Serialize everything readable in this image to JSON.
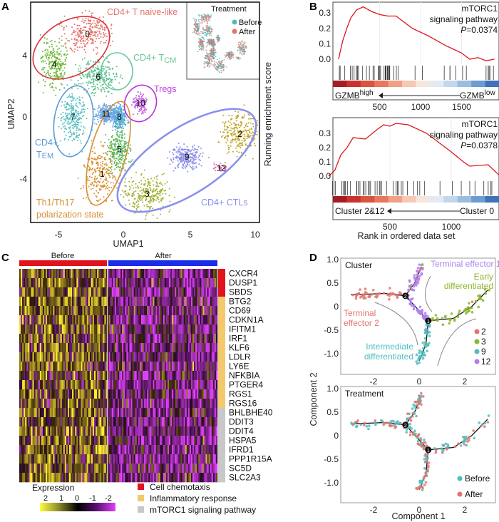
{
  "panels": {
    "a": "A",
    "b": "B",
    "c": "C",
    "d": "D"
  },
  "chart_data": [
    {
      "type": "scatter",
      "panel": "A",
      "xlabel": "UMAP1",
      "ylabel": "UMAP2",
      "xticks": [
        "-5",
        "0",
        "5",
        "10"
      ],
      "yticks": [
        "4",
        "0",
        "-4"
      ],
      "clusters": [
        {
          "id": "0",
          "x": -2.7,
          "y": 5.4,
          "color": "#e5736b"
        },
        {
          "id": "1",
          "x": -1.6,
          "y": -3.7,
          "color": "#d8902e"
        },
        {
          "id": "2",
          "x": 8.8,
          "y": -1.1,
          "color": "#bfa52a"
        },
        {
          "id": "3",
          "x": 1.8,
          "y": -5.0,
          "color": "#a3b02f"
        },
        {
          "id": "4",
          "x": -5.2,
          "y": 3.4,
          "color": "#74b93c"
        },
        {
          "id": "5",
          "x": -0.3,
          "y": -2.1,
          "color": "#5cba5e"
        },
        {
          "id": "6",
          "x": -1.9,
          "y": 2.6,
          "color": "#5dc08e"
        },
        {
          "id": "7",
          "x": -3.8,
          "y": 0.0,
          "color": "#5bbfc3"
        },
        {
          "id": "8",
          "x": -0.3,
          "y": 0.0,
          "color": "#56a8d8"
        },
        {
          "id": "9",
          "x": 4.8,
          "y": -2.6,
          "color": "#8c8fe8"
        },
        {
          "id": "10",
          "x": 1.3,
          "y": 0.9,
          "color": "#c25be0"
        },
        {
          "id": "11",
          "x": -1.3,
          "y": 0.2,
          "color": "#6ea4e0"
        },
        {
          "id": "12",
          "x": 7.4,
          "y": -3.3,
          "color": "#e070b8"
        }
      ],
      "annotations": {
        "naive": "CD4+ T naive-like",
        "tcm_main": "CD4+ T",
        "tcm_sub": "CM",
        "tregs": "Tregs",
        "tem_line1": "CD4+",
        "tem_main": "T",
        "tem_sub": "EM",
        "th_line1": "Th1/Th17",
        "th_line2": "polarization state",
        "ctl": "CD4+ CTLs"
      },
      "annotation_colors": {
        "naive": "#d9303c",
        "tcm": "#6cc79a",
        "tregs": "#b52fd6",
        "tem": "#5b9bd5",
        "th": "#d49033",
        "ctl": "#8a8ef0"
      },
      "inset": {
        "title": "Treatment",
        "legend": [
          {
            "label": "Before",
            "color": "#4fbdbf"
          },
          {
            "label": "After",
            "color": "#e5736b"
          }
        ]
      }
    },
    {
      "type": "line",
      "panel": "B-top",
      "ylabel": "Running enrichment score",
      "xticks": [
        "500",
        "1000",
        "1500"
      ],
      "yticks": [
        "0.3",
        "0.2",
        "0.1",
        "0.0"
      ],
      "annotation": [
        "mTORC1",
        "signaling pathway",
        "P",
        "=0.0374"
      ],
      "arrow_left": "GZMB",
      "arrow_left_sup": "high",
      "arrow_right": "GZMB",
      "arrow_right_sup": "low",
      "x": [
        0,
        20,
        50,
        100,
        150,
        220,
        300,
        400,
        500,
        600,
        700,
        900,
        1100,
        1300,
        1500,
        1600,
        1700,
        1800,
        1900
      ],
      "y": [
        0,
        0.05,
        0.12,
        0.2,
        0.27,
        0.32,
        0.34,
        0.31,
        0.29,
        0.28,
        0.28,
        0.2,
        0.15,
        0.09,
        0.04,
        0.0,
        0.01,
        -0.01,
        0.0
      ],
      "xlim": [
        0,
        1900
      ],
      "ylim": [
        -0.02,
        0.36
      ]
    },
    {
      "type": "line",
      "panel": "B-bottom",
      "xlabel": "Rank in ordered data set",
      "xticks": [
        "500",
        "1000"
      ],
      "yticks": [
        "0.3",
        "0.2",
        "0.1",
        "0.0"
      ],
      "annotation": [
        "mTORC1",
        "signaling pathway",
        "P",
        "=0.0378"
      ],
      "arrow_left": "Cluster 2&12",
      "arrow_right": "Cluster 0",
      "x": [
        0,
        50,
        100,
        150,
        200,
        300,
        400,
        450,
        500,
        550,
        650,
        800,
        1000,
        1100,
        1150,
        1300,
        1400
      ],
      "y": [
        0,
        0.04,
        0.15,
        0.2,
        0.27,
        0.26,
        0.33,
        0.36,
        0.35,
        0.37,
        0.36,
        0.3,
        0.17,
        0.1,
        0.07,
        0.08,
        0.0
      ],
      "xlim": [
        0,
        1400
      ],
      "ylim": [
        -0.02,
        0.38
      ]
    },
    {
      "type": "heatmap",
      "panel": "C",
      "groups": [
        {
          "label": "Before",
          "color": "#e0141e"
        },
        {
          "label": "After",
          "color": "#1a2de8"
        }
      ],
      "genes": [
        {
          "name": "CXCR4",
          "cat": 0
        },
        {
          "name": "DUSP1",
          "cat": 0
        },
        {
          "name": "SBDS",
          "cat": 0
        },
        {
          "name": "BTG2",
          "cat": 1
        },
        {
          "name": "CD69",
          "cat": 1
        },
        {
          "name": "CDKN1A",
          "cat": 1
        },
        {
          "name": "IFITM1",
          "cat": 1
        },
        {
          "name": "IRF1",
          "cat": 1
        },
        {
          "name": "KLF6",
          "cat": 1
        },
        {
          "name": "LDLR",
          "cat": 1
        },
        {
          "name": "LY6E",
          "cat": 1
        },
        {
          "name": "NFKBIA",
          "cat": 1
        },
        {
          "name": "PTGER4",
          "cat": 1
        },
        {
          "name": "RGS1",
          "cat": 1
        },
        {
          "name": "RGS16",
          "cat": 1
        },
        {
          "name": "BHLBHE40",
          "cat": 2
        },
        {
          "name": "DDIT3",
          "cat": 2
        },
        {
          "name": "DDIT4",
          "cat": 2
        },
        {
          "name": "HSPA5",
          "cat": 2
        },
        {
          "name": "IFRD1",
          "cat": 2
        },
        {
          "name": "PPP1R15A",
          "cat": 2
        },
        {
          "name": "SC5D",
          "cat": 2
        },
        {
          "name": "SLC2A3",
          "cat": 2
        }
      ],
      "categories": [
        {
          "label": "Cell chemotaxis",
          "color": "#e0141e"
        },
        {
          "label": "Inflammatory response",
          "color": "#f2ca6b"
        },
        {
          "label": "mTORC1 signaling pathway",
          "color": "#c8c8c8"
        }
      ],
      "colorbar": {
        "title": "Expression",
        "ticks": [
          "2",
          "1",
          "0",
          "-1",
          "-2"
        ],
        "colors": [
          "#ffff3c",
          "#8a8a2a",
          "#000000",
          "#5a1070",
          "#e040fb"
        ],
        "range": [
          2,
          -2
        ]
      }
    },
    {
      "type": "scatter",
      "panel": "D-top",
      "title": "Cluster",
      "ylabel": "Component 2",
      "xticks": [
        "-2",
        "0",
        "2"
      ],
      "yticks": [
        "1.0",
        "0.5",
        "0",
        "-0.5",
        "-1.0"
      ],
      "xlim": [
        -3.4,
        3.3
      ],
      "ylim": [
        -1.4,
        1.05
      ],
      "legend": [
        {
          "label": "2",
          "color": "#e5736b"
        },
        {
          "label": "3",
          "color": "#8db52a"
        },
        {
          "label": "9",
          "color": "#4fbdbf"
        },
        {
          "label": "12",
          "color": "#b07ef0"
        }
      ],
      "annotations": [
        {
          "text": "Terminal effector 1",
          "color": "#b07ef0"
        },
        {
          "text": "Early",
          "color": "#8db52a"
        },
        {
          "text": "differentiated",
          "color": "#8db52a"
        },
        {
          "text": "Terminal",
          "color": "#e5736b"
        },
        {
          "text": "effector 2",
          "color": "#e5736b"
        },
        {
          "text": "Intermediate",
          "color": "#4fbdbf"
        },
        {
          "text": "differentiated",
          "color": "#4fbdbf"
        }
      ],
      "branch_points": [
        {
          "label": "2",
          "x": -0.6,
          "y": 0.23
        },
        {
          "label": "1",
          "x": 0.4,
          "y": -0.3
        }
      ]
    },
    {
      "type": "scatter",
      "panel": "D-bottom",
      "title": "Treatment",
      "xlabel": "Component 1",
      "xticks": [
        "-2",
        "0",
        "2"
      ],
      "yticks": [
        "1.0",
        "0.5",
        "0",
        "-0.5",
        "-1.0"
      ],
      "xlim": [
        -3.4,
        3.3
      ],
      "ylim": [
        -1.4,
        1.05
      ],
      "legend": [
        {
          "label": "Before",
          "color": "#4fbdbf"
        },
        {
          "label": "After",
          "color": "#e5736b"
        }
      ]
    }
  ]
}
